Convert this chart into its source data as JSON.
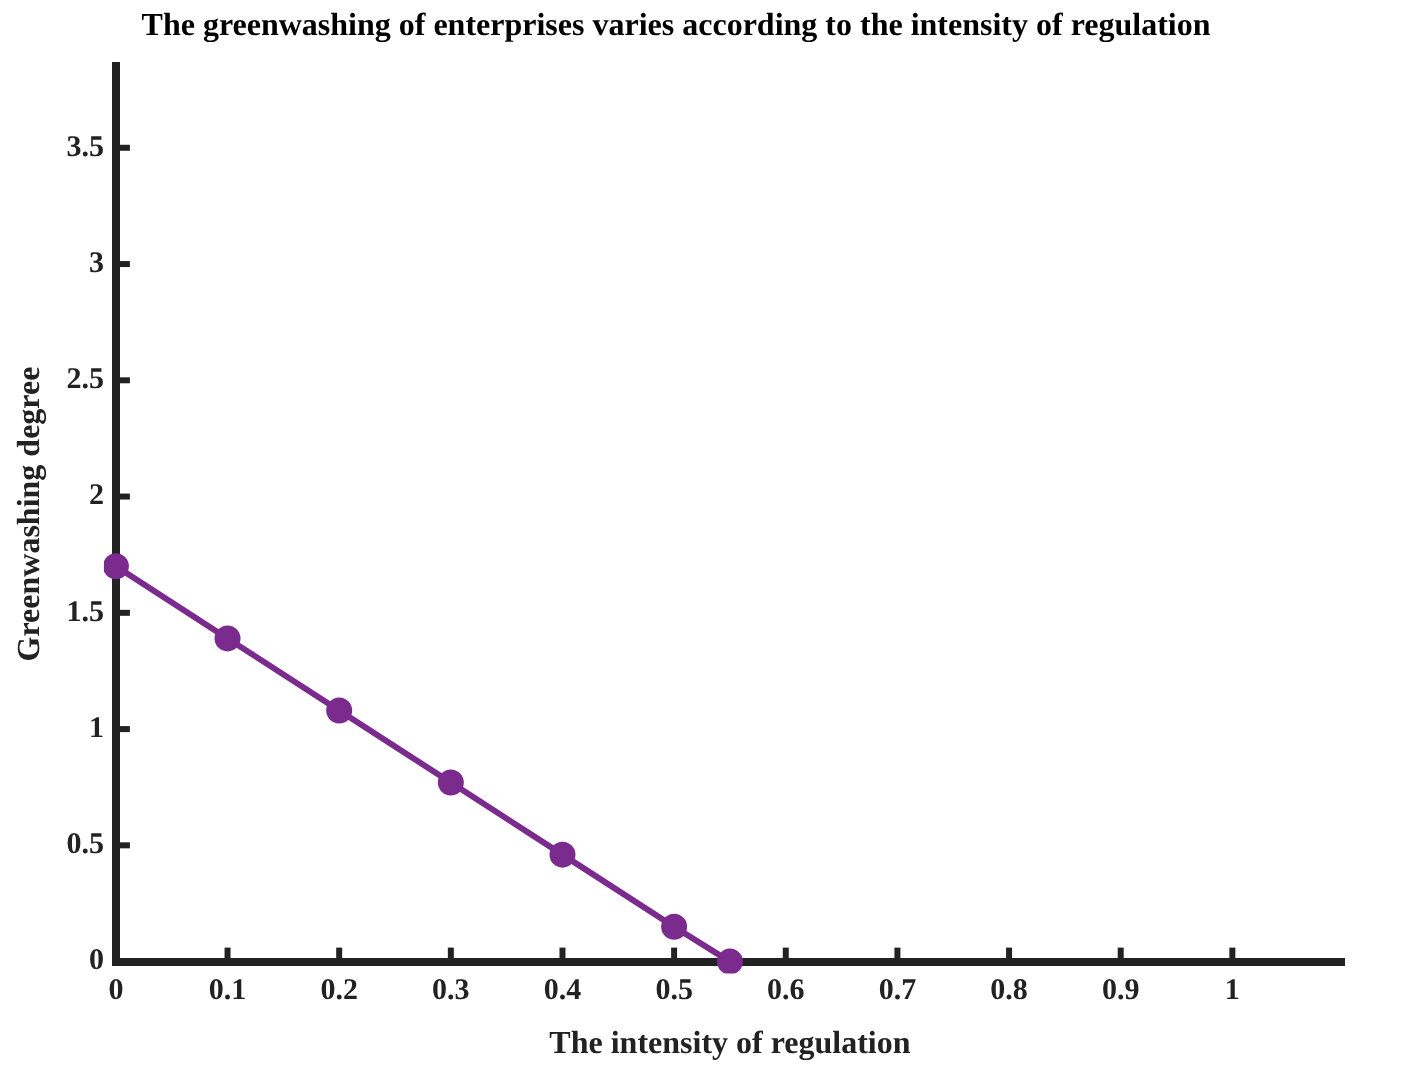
{
  "chart_data": {
    "type": "line",
    "title": "The greenwashing of enterprises varies according to the intensity of regulation",
    "xlabel": "The intensity of regulation",
    "ylabel": "Greenwashing degree",
    "x": [
      0,
      0.1,
      0.2,
      0.3,
      0.4,
      0.5,
      0.55
    ],
    "series": [
      {
        "color": "#7b2a8e",
        "values": [
          1.7,
          1.39,
          1.08,
          0.77,
          0.46,
          0.15,
          0
        ]
      }
    ],
    "xlim": [
      0,
      1.1
    ],
    "xticks": [
      0,
      0.1,
      0.2,
      0.3,
      0.4,
      0.5,
      0.6,
      0.7,
      0.8,
      0.9,
      1
    ],
    "ylim": [
      0,
      3.85
    ],
    "yticks": [
      0,
      0.5,
      1,
      1.5,
      2,
      2.5,
      3,
      3.5
    ],
    "grid": false,
    "legend": false,
    "marker": "circle",
    "line_style": "solid"
  }
}
